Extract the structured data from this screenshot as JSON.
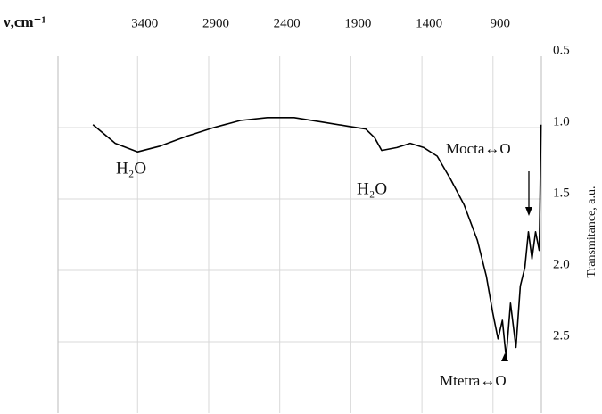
{
  "chart_data": {
    "type": "line",
    "x_label": "ν,cm⁻¹",
    "y_label": "Transmitance, a.u.",
    "xlim": [
      3960,
      560
    ],
    "xticks": [
      3400,
      2900,
      2400,
      1900,
      1400,
      900
    ],
    "ylim": [
      0.5,
      3.0
    ],
    "yticks": [
      0.5,
      {
        "value": 1,
        "label": "1.0"
      },
      1.5,
      {
        "value": 2,
        "label": "2.0"
      },
      2.5
    ],
    "y_inverted": true,
    "grid": true,
    "series": [
      {
        "color": "#000000",
        "x": [
          3714,
          3557,
          3400,
          3243,
          3054,
          2865,
          2677,
          2488,
          2299,
          2111,
          1922,
          1796,
          1733,
          1683,
          1576,
          1482,
          1387,
          1293,
          1199,
          1104,
          1010,
          947,
          903,
          865,
          834,
          808,
          777,
          739,
          708,
          676,
          651,
          626,
          601,
          575,
          562
        ],
        "values": [
          0.98,
          1.11,
          1.17,
          1.13,
          1.06,
          1.0,
          0.95,
          0.93,
          0.93,
          0.96,
          0.99,
          1.01,
          1.07,
          1.16,
          1.14,
          1.11,
          1.14,
          1.2,
          1.36,
          1.54,
          1.79,
          2.04,
          2.29,
          2.48,
          2.35,
          2.61,
          2.23,
          2.54,
          2.11,
          1.98,
          1.73,
          1.92,
          1.73,
          1.86,
          0.98
        ]
      }
    ],
    "annotations": [
      "H₂O",
      "H₂O",
      "Mocta↔O",
      "Mtetra↔O"
    ]
  }
}
